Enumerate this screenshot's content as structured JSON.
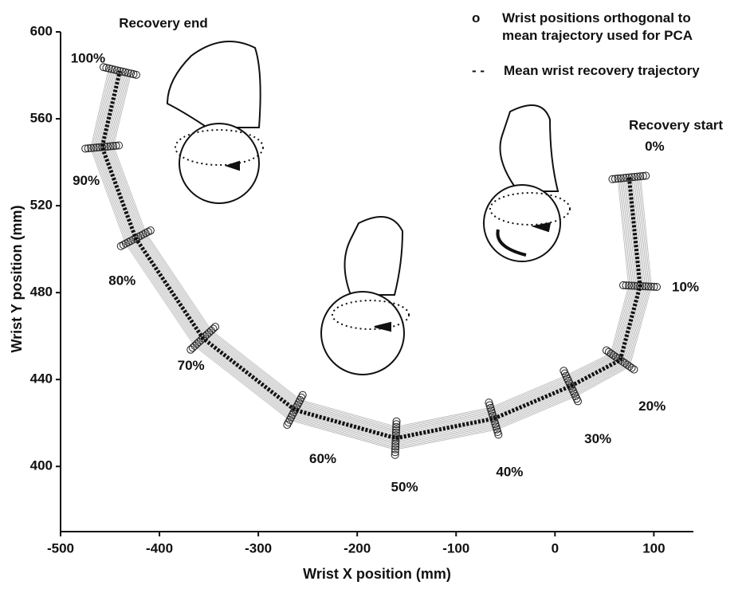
{
  "chart_data": {
    "type": "line",
    "x_label": "Wrist X position (mm)",
    "y_label": "Wrist Y position (mm)",
    "xlim": [
      -500,
      140
    ],
    "ylim": [
      370,
      600
    ],
    "xticks": [
      -500,
      -400,
      -300,
      -200,
      -100,
      0,
      100
    ],
    "yticks": [
      400,
      440,
      480,
      520,
      560,
      600
    ],
    "annotations": [
      "Recovery end",
      "Recovery start"
    ],
    "series": [
      {
        "name": "Wrist positions orthogonal to mean trajectory used for PCA",
        "color": "#222222",
        "marker": "o"
      },
      {
        "name": "Mean wrist recovery trajectory",
        "color": "#111111",
        "line": "dashed",
        "x": [
          75,
          86,
          66,
          16,
          -62,
          -161,
          -263,
          -356,
          -424,
          -458,
          -440
        ],
        "y": [
          533,
          483,
          449,
          437,
          422,
          413,
          426,
          459,
          505,
          547,
          582
        ],
        "point_labels": [
          "0%",
          "10%",
          "20%",
          "30%",
          "40%",
          "50%",
          "60%",
          "70%",
          "80%",
          "90%",
          "100%"
        ]
      }
    ]
  }
}
